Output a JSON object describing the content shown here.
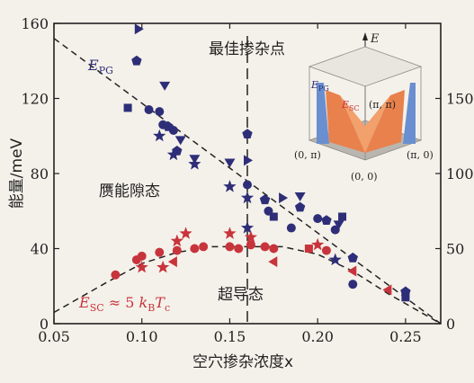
{
  "chart_data": {
    "type": "scatter",
    "xlabel": "空穴掺杂浓度x",
    "ylabel": "能量/meV",
    "xlim": [
      0.05,
      0.27
    ],
    "ylim": [
      0,
      160
    ],
    "y2lim": [
      0,
      200
    ],
    "x_ticks": [
      "0.05",
      "0.10",
      "0.15",
      "0.20",
      "0.25"
    ],
    "y_ticks": [
      "0",
      "40",
      "80",
      "120",
      "160"
    ],
    "y2_ticks": [
      "0",
      "50",
      "100",
      "150"
    ],
    "grid": false,
    "colors": {
      "pg": "#2e2e78",
      "sc": "#c8343c",
      "frame": "#222222",
      "bg": "#f4f1ea"
    },
    "annotations": {
      "pg_label_main": "E",
      "pg_label_sub": "PG",
      "optimal": "最佳掺杂点",
      "pseudogap": "赝能隙态",
      "superconducting": "超导态",
      "sc_label_prefix": "E",
      "sc_label_sub": "SC",
      "sc_label_mid": " ≈ 5 ",
      "sc_label_k": "k",
      "sc_label_ksub": "B",
      "sc_label_t": "T",
      "sc_label_tsub": "c"
    },
    "pg_line": {
      "x": [
        0.05,
        0.27
      ],
      "y": [
        152,
        0
      ]
    },
    "optimal_x": 0.16,
    "sc_curve": {
      "x": [
        0.05,
        0.08,
        0.1,
        0.12,
        0.14,
        0.16,
        0.18,
        0.2,
        0.22,
        0.24,
        0.27
      ],
      "y": [
        6,
        22,
        32,
        38,
        41,
        41,
        41,
        37,
        28,
        16,
        0
      ]
    },
    "series": [
      {
        "marker": "pentagon",
        "color": "#2e2e78",
        "x": [
          0.097,
          0.115,
          0.12,
          0.16,
          0.17,
          0.19,
          0.205,
          0.22,
          0.25
        ],
        "y": [
          140,
          105,
          92,
          101,
          66,
          62,
          55,
          35,
          17
        ]
      },
      {
        "marker": "circle",
        "color": "#2e2e78",
        "x": [
          0.104,
          0.11,
          0.112,
          0.118,
          0.16,
          0.172,
          0.185,
          0.2,
          0.21,
          0.22
        ],
        "y": [
          114,
          113,
          106,
          103,
          74,
          60,
          51,
          56,
          50,
          21
        ]
      },
      {
        "marker": "square",
        "color": "#2e2e78",
        "x": [
          0.092,
          0.175,
          0.214,
          0.25
        ],
        "y": [
          115,
          57,
          57,
          14
        ]
      },
      {
        "marker": "tri-right",
        "color": "#2e2e78",
        "x": [
          0.098,
          0.16,
          0.18
        ],
        "y": [
          157,
          87,
          67
        ]
      },
      {
        "marker": "tri-down",
        "color": "#2e2e78",
        "x": [
          0.113,
          0.122,
          0.13,
          0.15,
          0.19,
          0.212
        ],
        "y": [
          127,
          98,
          88,
          86,
          68,
          53
        ]
      },
      {
        "marker": "star",
        "color": "#2e2e78",
        "x": [
          0.11,
          0.118,
          0.13,
          0.15,
          0.16,
          0.16,
          0.21
        ],
        "y": [
          100,
          90,
          85,
          73,
          67,
          51,
          34
        ]
      },
      {
        "marker": "circle",
        "color": "#c8343c",
        "x": [
          0.085,
          0.097,
          0.1,
          0.11,
          0.12,
          0.13,
          0.135,
          0.15,
          0.155,
          0.162,
          0.17,
          0.175,
          0.205
        ],
        "y": [
          26,
          34,
          36,
          38,
          39,
          40,
          41,
          41,
          40,
          42,
          41,
          40,
          39
        ]
      },
      {
        "marker": "star",
        "color": "#c8343c",
        "x": [
          0.1,
          0.112,
          0.12,
          0.125,
          0.15,
          0.162,
          0.2
        ],
        "y": [
          30,
          30,
          44,
          48,
          48,
          46,
          42
        ]
      },
      {
        "marker": "tri-left",
        "color": "#c8343c",
        "x": [
          0.118,
          0.175,
          0.22,
          0.24
        ],
        "y": [
          33,
          33,
          28,
          18
        ]
      },
      {
        "marker": "square",
        "color": "#c8343c",
        "x": [
          0.195
        ],
        "y": [
          40
        ]
      }
    ],
    "inset": {
      "axis_label": "E",
      "corner_labels": [
        "(0, π)",
        "(π, π)",
        "(π, 0)",
        "(0, 0)"
      ],
      "pg_label_main": "E",
      "pg_label_sub": "PG",
      "sc_label_main": "E",
      "sc_label_sub": "SC"
    }
  }
}
